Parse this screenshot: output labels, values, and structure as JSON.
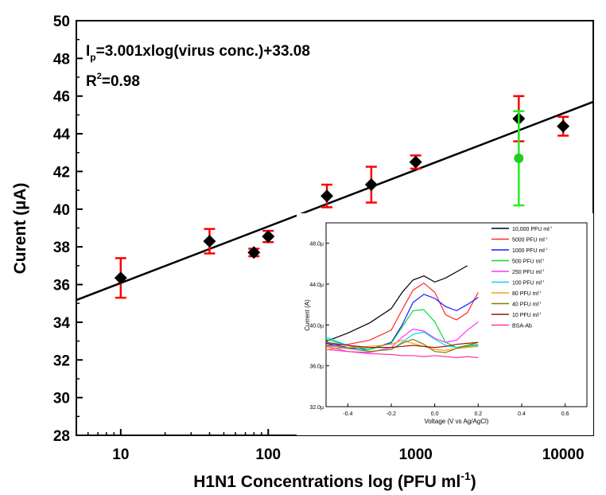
{
  "chart_data": [
    {
      "type": "scatter",
      "title": "",
      "xlabel_main": "H1N1 Concentrations log (PFU ml",
      "xlabel_sup": "-1",
      "xlabel_close": ")",
      "ylabel": "Curent (µA)",
      "xscale": "log",
      "xlim": [
        5,
        16000
      ],
      "ylim": [
        28,
        50
      ],
      "xticks": [
        10,
        100,
        1000,
        10000
      ],
      "xtick_labels": [
        "10",
        "100",
        "1000",
        "10000"
      ],
      "yticks": [
        28,
        30,
        32,
        34,
        36,
        38,
        40,
        42,
        44,
        46,
        48,
        50
      ],
      "ytick_labels": [
        "28",
        "30",
        "32",
        "34",
        "36",
        "38",
        "40",
        "42",
        "44",
        "46",
        "48",
        "50"
      ],
      "equation": {
        "ip_main": "I",
        "ip_sub": "p",
        "ip_rest": "=3.001xlog(virus conc.)+33.08",
        "r2_main": "R",
        "r2_sup": "2",
        "r2_rest": "=0.98"
      },
      "fit": {
        "slope": 3.001,
        "intercept": 33.08
      },
      "series": [
        {
          "marker": "diamond",
          "color": "#000000",
          "error_color": "#ff0000",
          "points": [
            {
              "x": 10,
              "y": 36.35,
              "err": 1.05
            },
            {
              "x": 40,
              "y": 38.3,
              "err": 0.65
            },
            {
              "x": 80,
              "y": 37.7,
              "err": 0.2
            },
            {
              "x": 100,
              "y": 38.55,
              "err": 0.3
            },
            {
              "x": 250,
              "y": 40.7,
              "err": 0.6
            },
            {
              "x": 500,
              "y": 41.3,
              "err": 0.95
            },
            {
              "x": 1000,
              "y": 42.5,
              "err": 0.35
            },
            {
              "x": 5000,
              "y": 44.8,
              "err": 1.2
            },
            {
              "x": 10000,
              "y": 44.4,
              "err": 0.5
            }
          ]
        },
        {
          "marker": "circle",
          "color": "#22cc22",
          "error_color": "#22ee22",
          "points": [
            {
              "x": 5000,
              "y": 42.7,
              "err": 2.5
            }
          ]
        }
      ]
    },
    {
      "type": "line",
      "title": "",
      "xlabel": "Voltage (V vs Ag/AgCl)",
      "ylabel": "Current (A)",
      "xlim": [
        -0.5,
        0.7
      ],
      "ylim": [
        32,
        50
      ],
      "xticks": [
        -0.4,
        -0.2,
        0.0,
        0.2,
        0.4,
        0.6
      ],
      "xtick_labels": [
        "-0.4",
        "-0.2",
        "0.0",
        "0.2",
        "0.4",
        "0.6"
      ],
      "yticks": [
        32,
        36,
        40,
        44,
        48
      ],
      "ytick_labels": [
        "32.0µ",
        "36.0µ",
        "40.0µ",
        "44.0µ",
        "48.0µ"
      ],
      "legend_placement": "top-right",
      "series": [
        {
          "name": "10,000 PFU ml",
          "sup": "-1",
          "color": "#000000",
          "x": [
            -0.5,
            -0.4,
            -0.3,
            -0.2,
            -0.15,
            -0.1,
            -0.05,
            0.0,
            0.05,
            0.1,
            0.15
          ],
          "y": [
            38.4,
            39.2,
            40.2,
            41.6,
            43.2,
            44.4,
            44.8,
            44.2,
            44.6,
            45.2,
            45.8
          ]
        },
        {
          "name": "5000 PFU ml",
          "sup": "-1",
          "color": "#ff2a2a",
          "x": [
            -0.5,
            -0.4,
            -0.3,
            -0.2,
            -0.15,
            -0.1,
            -0.05,
            0.0,
            0.05,
            0.1,
            0.15,
            0.2
          ],
          "y": [
            38.0,
            38.1,
            38.5,
            39.5,
            41.5,
            43.4,
            44.1,
            43.2,
            41.0,
            40.5,
            41.2,
            43.2
          ]
        },
        {
          "name": "1000 PFU ml",
          "sup": "-1",
          "color": "#1a1aff",
          "x": [
            -0.5,
            -0.4,
            -0.3,
            -0.2,
            -0.15,
            -0.1,
            -0.05,
            0.0,
            0.05,
            0.1,
            0.15,
            0.2
          ],
          "y": [
            38.2,
            37.8,
            37.6,
            38.3,
            40.0,
            42.2,
            43.0,
            42.6,
            41.8,
            41.4,
            42.0,
            42.7
          ]
        },
        {
          "name": "500 PFU ml",
          "sup": "-1",
          "color": "#00dd33",
          "x": [
            -0.5,
            -0.4,
            -0.3,
            -0.2,
            -0.15,
            -0.1,
            -0.05,
            0.0,
            0.05,
            0.1,
            0.15,
            0.2
          ],
          "y": [
            38.6,
            38.0,
            37.6,
            38.2,
            39.8,
            41.4,
            41.5,
            40.3,
            38.3,
            37.8,
            37.9,
            38.0
          ]
        },
        {
          "name": "250 PFU ml",
          "sup": "-1",
          "color": "#ff33ff",
          "x": [
            -0.5,
            -0.4,
            -0.3,
            -0.2,
            -0.15,
            -0.1,
            -0.05,
            0.0,
            0.05,
            0.1,
            0.15,
            0.2
          ],
          "y": [
            37.6,
            37.4,
            37.3,
            37.8,
            38.8,
            39.6,
            39.4,
            38.7,
            38.3,
            38.5,
            39.5,
            40.3
          ]
        },
        {
          "name": "100 PFU ml",
          "sup": "-1",
          "color": "#00d8e8",
          "x": [
            -0.5,
            -0.4,
            -0.3,
            -0.2,
            -0.15,
            -0.1,
            -0.05,
            0.0,
            0.05,
            0.1,
            0.15,
            0.2
          ],
          "y": [
            38.8,
            38.0,
            37.4,
            37.6,
            38.3,
            39.1,
            39.3,
            38.6,
            38.0,
            37.8,
            38.0,
            38.1
          ]
        },
        {
          "name": "80 PFU ml",
          "sup": "-1",
          "color": "#ff9a1a",
          "x": [
            -0.5,
            -0.4,
            -0.3,
            -0.2,
            -0.15,
            -0.1,
            -0.05,
            0.0,
            0.05,
            0.1,
            0.15,
            0.2
          ],
          "y": [
            37.6,
            37.8,
            37.9,
            38.1,
            38.5,
            38.2,
            37.9,
            37.6,
            37.5,
            37.7,
            37.8,
            37.9
          ]
        },
        {
          "name": "40 PFU ml",
          "sup": "-1",
          "color": "#808000",
          "x": [
            -0.5,
            -0.4,
            -0.3,
            -0.2,
            -0.15,
            -0.1,
            -0.05,
            0.0,
            0.05,
            0.1,
            0.15,
            0.2
          ],
          "y": [
            38.0,
            37.7,
            37.4,
            37.6,
            38.2,
            38.6,
            38.1,
            37.4,
            37.3,
            37.7,
            38.0,
            38.3
          ]
        },
        {
          "name": "10 PFU ml",
          "sup": "-1",
          "color": "#a01010",
          "x": [
            -0.5,
            -0.4,
            -0.3,
            -0.2,
            -0.15,
            -0.1,
            -0.05,
            0.0,
            0.05,
            0.1,
            0.15,
            0.2
          ],
          "y": [
            38.3,
            38.0,
            37.8,
            37.8,
            37.9,
            38.0,
            37.9,
            37.8,
            37.9,
            38.1,
            38.2,
            38.3
          ]
        },
        {
          "name": "BSA-Ab",
          "sup": "",
          "color": "#ff33aa",
          "x": [
            -0.5,
            -0.4,
            -0.3,
            -0.2,
            -0.15,
            -0.1,
            -0.05,
            0.0,
            0.05,
            0.1,
            0.15,
            0.2
          ],
          "y": [
            37.9,
            37.4,
            37.2,
            37.1,
            37.0,
            37.0,
            36.9,
            37.0,
            36.9,
            36.8,
            36.9,
            36.8
          ]
        }
      ]
    }
  ]
}
